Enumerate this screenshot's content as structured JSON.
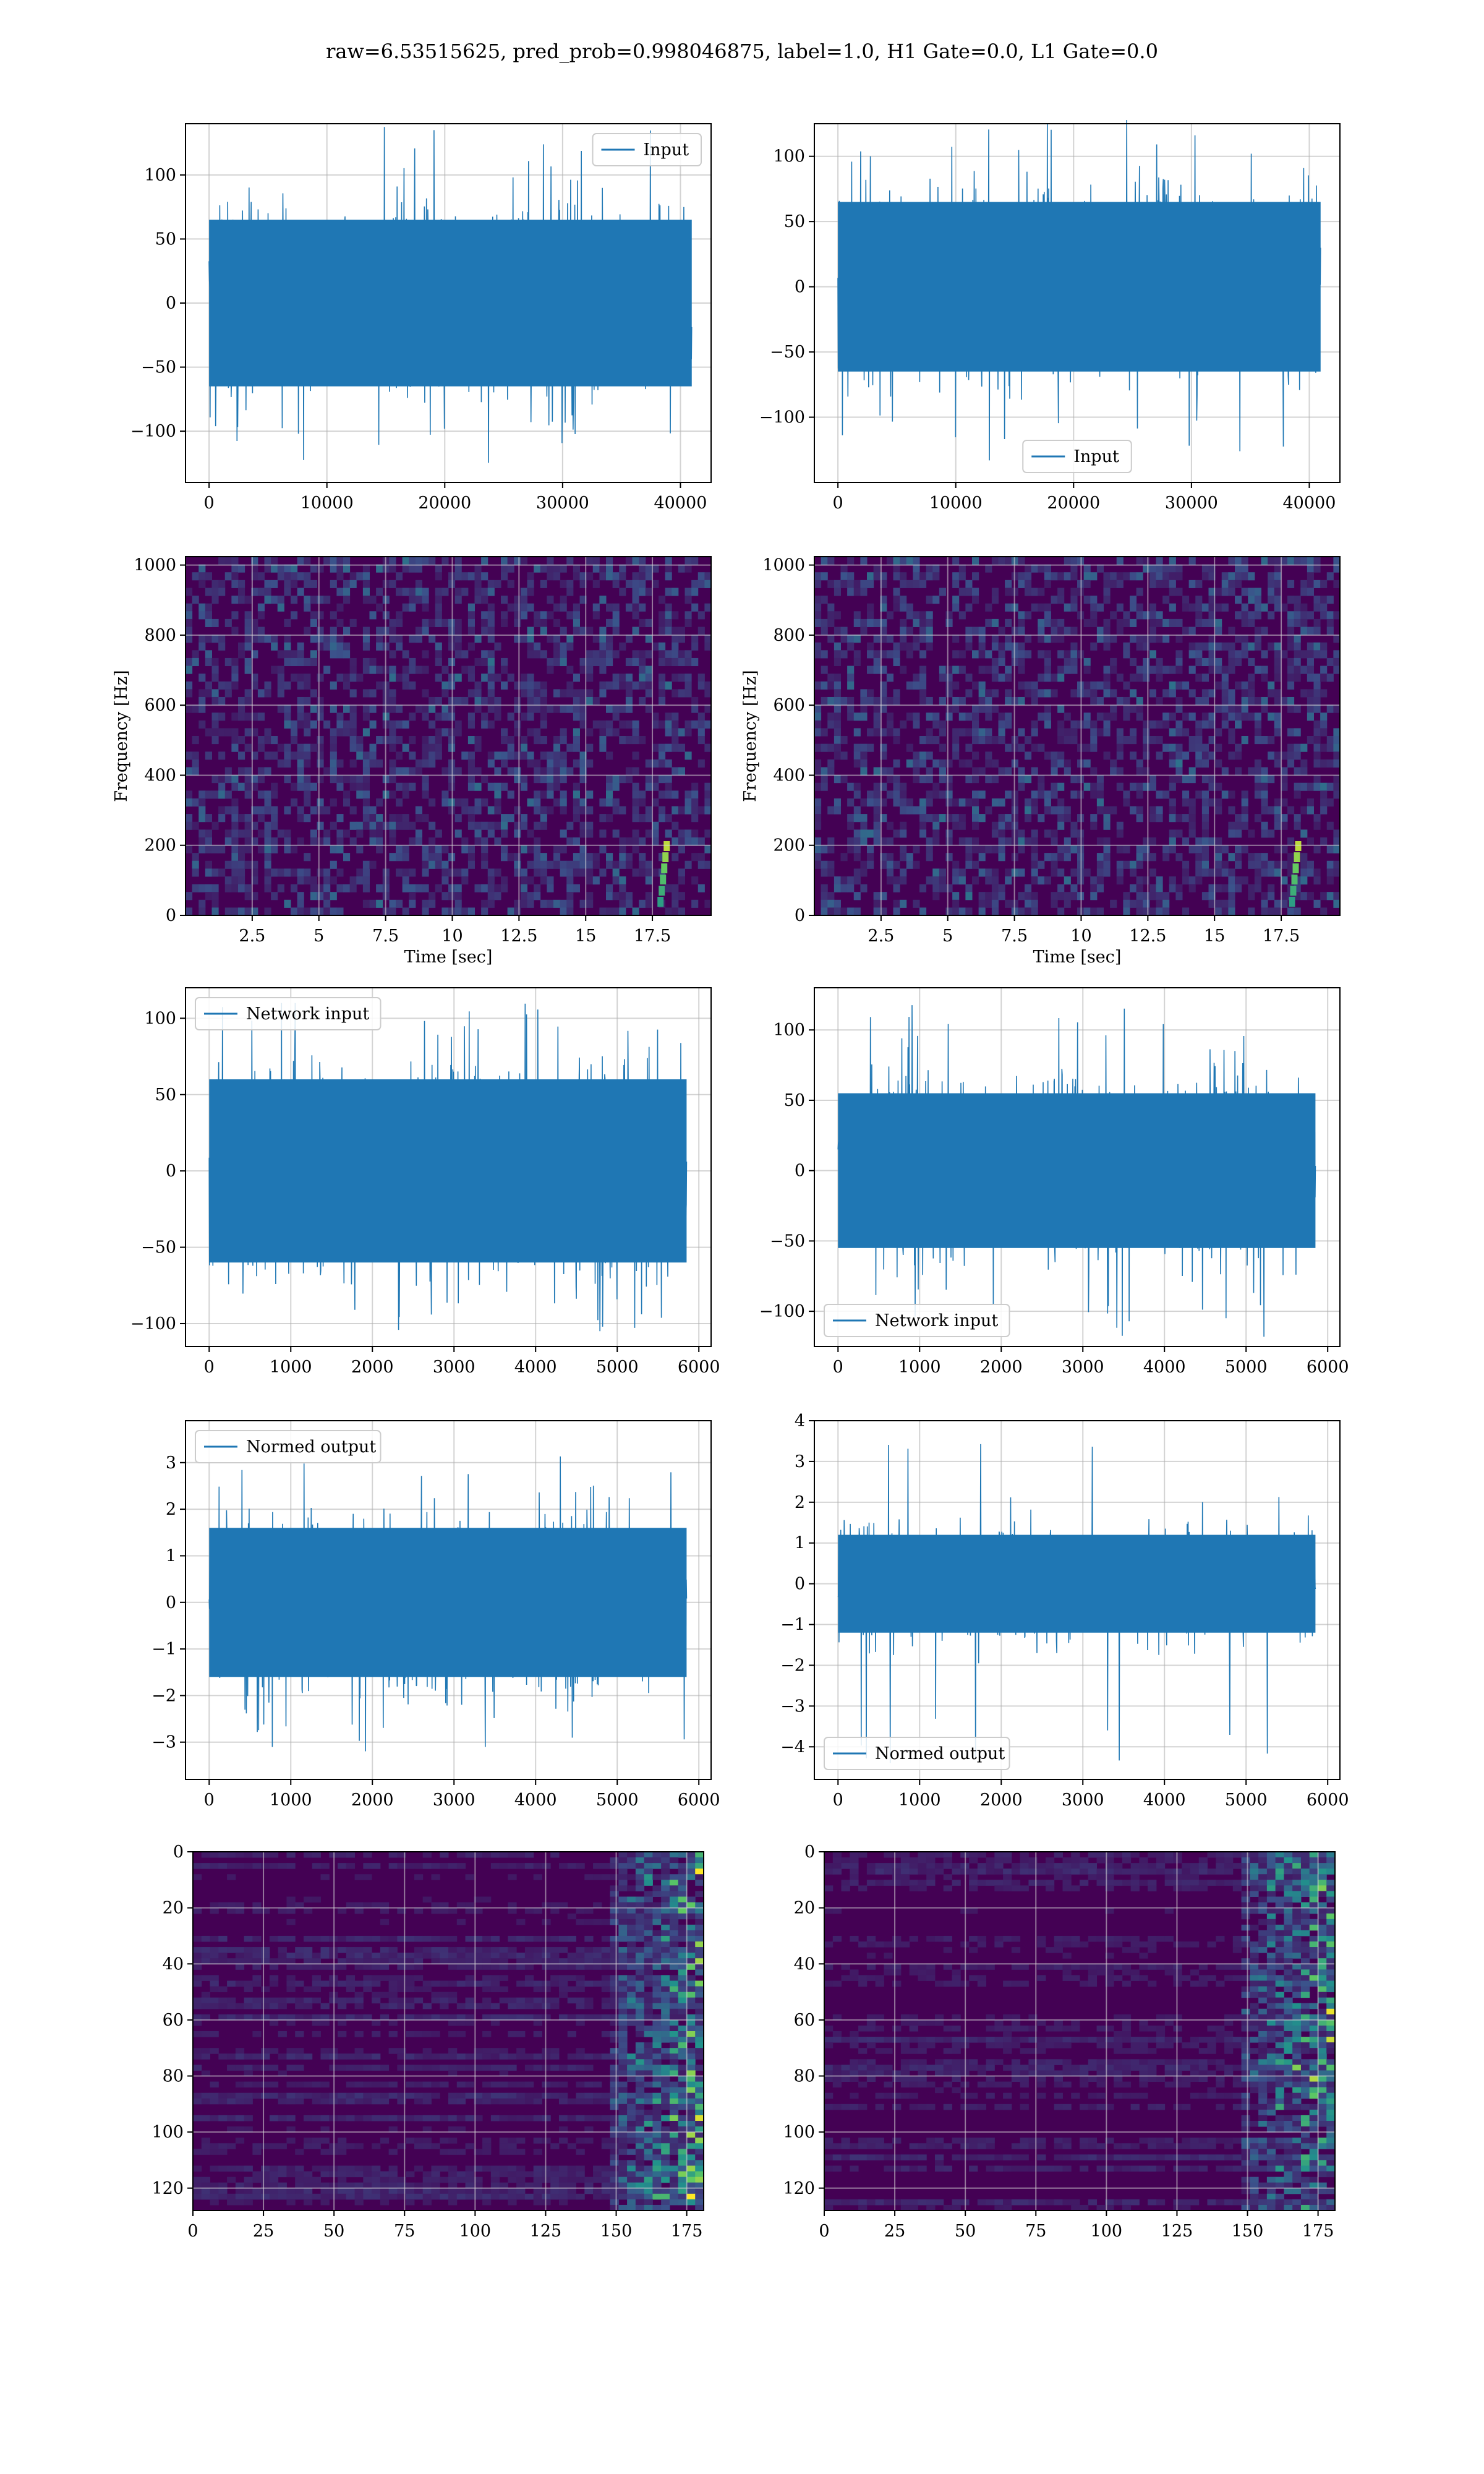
{
  "figure": {
    "title": "raw=6.53515625, pred_prob=0.998046875, label=1.0, H1 Gate=0.0, L1 Gate=0.0"
  },
  "colors": {
    "series": "#1f77b4",
    "grid": "#b0b0b0",
    "viridis_low": "#440154",
    "viridis_mid": "#21918c",
    "viridis_high": "#fde725"
  },
  "chart_data": [
    {
      "id": "input-h1",
      "type": "line",
      "legend": [
        "Input"
      ],
      "legend_loc": "upper right",
      "xlim": [
        -2000,
        42600
      ],
      "ylim": [
        -140,
        140
      ],
      "xticks": [
        0,
        10000,
        20000,
        30000,
        40000
      ],
      "yticks": [
        -100,
        -50,
        0,
        50,
        100
      ],
      "xlabel": "",
      "ylabel": "",
      "series": [
        {
          "name": "Input",
          "x_range": [
            0,
            40960
          ],
          "envelope_min": -125,
          "envelope_max": 138,
          "typical_amplitude": 65
        }
      ]
    },
    {
      "id": "input-l1",
      "type": "line",
      "legend": [
        "Input"
      ],
      "legend_loc": "lower center",
      "xlim": [
        -2000,
        42600
      ],
      "ylim": [
        -150,
        125
      ],
      "xticks": [
        0,
        10000,
        20000,
        30000,
        40000
      ],
      "yticks": [
        -100,
        -50,
        0,
        50,
        100
      ],
      "xlabel": "",
      "ylabel": "",
      "series": [
        {
          "name": "Input",
          "x_range": [
            0,
            40960
          ],
          "envelope_min": -135,
          "envelope_max": 130,
          "typical_amplitude": 65
        }
      ]
    },
    {
      "id": "spectrogram-h1",
      "type": "heatmap",
      "xlim": [
        0,
        19.7
      ],
      "ylim": [
        0,
        1024
      ],
      "xticks": [
        2.5,
        5.0,
        7.5,
        10.0,
        12.5,
        15.0,
        17.5
      ],
      "yticks": [
        0,
        200,
        400,
        600,
        800,
        1000
      ],
      "xlabel": "Time [sec]",
      "ylabel": "Frequency [Hz]",
      "colormap": "viridis"
    },
    {
      "id": "spectrogram-l1",
      "type": "heatmap",
      "xlim": [
        0,
        19.7
      ],
      "ylim": [
        0,
        1024
      ],
      "xticks": [
        2.5,
        5.0,
        7.5,
        10.0,
        12.5,
        15.0,
        17.5
      ],
      "yticks": [
        0,
        200,
        400,
        600,
        800,
        1000
      ],
      "xlabel": "Time [sec]",
      "ylabel": "Frequency [Hz]",
      "colormap": "viridis"
    },
    {
      "id": "network-input-h1",
      "type": "line",
      "legend": [
        "Network input"
      ],
      "legend_loc": "upper left",
      "xlim": [
        -290,
        6150
      ],
      "ylim": [
        -115,
        120
      ],
      "xticks": [
        0,
        1000,
        2000,
        3000,
        4000,
        5000,
        6000
      ],
      "yticks": [
        -100,
        -50,
        0,
        50,
        100
      ],
      "xlabel": "",
      "ylabel": "",
      "series": [
        {
          "name": "Network input",
          "x_range": [
            0,
            5850
          ],
          "envelope_min": -105,
          "envelope_max": 110,
          "typical_amplitude": 60
        }
      ]
    },
    {
      "id": "network-input-l1",
      "type": "line",
      "legend": [
        "Network input"
      ],
      "legend_loc": "lower left",
      "xlim": [
        -290,
        6150
      ],
      "ylim": [
        -125,
        130
      ],
      "xticks": [
        0,
        1000,
        2000,
        3000,
        4000,
        5000,
        6000
      ],
      "yticks": [
        -100,
        -50,
        0,
        50,
        100
      ],
      "xlabel": "",
      "ylabel": "",
      "series": [
        {
          "name": "Network input",
          "x_range": [
            0,
            5850
          ],
          "envelope_min": -122,
          "envelope_max": 118,
          "typical_amplitude": 55
        }
      ]
    },
    {
      "id": "normed-output-h1",
      "type": "line",
      "legend": [
        "Normed output"
      ],
      "legend_loc": "upper left",
      "xlim": [
        -290,
        6150
      ],
      "ylim": [
        -3.8,
        3.9
      ],
      "xticks": [
        0,
        1000,
        2000,
        3000,
        4000,
        5000,
        6000
      ],
      "yticks": [
        -3,
        -2,
        -1,
        0,
        1,
        2,
        3
      ],
      "xlabel": "",
      "ylabel": "",
      "series": [
        {
          "name": "Normed output",
          "x_range": [
            0,
            5850
          ],
          "envelope_min": -3.4,
          "envelope_max": 3.3,
          "typical_amplitude": 1.6
        }
      ]
    },
    {
      "id": "normed-output-l1",
      "type": "line",
      "legend": [
        "Normed output"
      ],
      "legend_loc": "lower left",
      "xlim": [
        -290,
        6150
      ],
      "ylim": [
        -4.8,
        4.0
      ],
      "xticks": [
        0,
        1000,
        2000,
        3000,
        4000,
        5000,
        6000
      ],
      "yticks": [
        -4,
        -3,
        -2,
        -1,
        0,
        1,
        2,
        3,
        4
      ],
      "xlabel": "",
      "ylabel": "",
      "series": [
        {
          "name": "Normed output",
          "x_range": [
            0,
            5850
          ],
          "envelope_min": -4.4,
          "envelope_max": 3.6,
          "typical_amplitude": 1.2
        }
      ]
    },
    {
      "id": "feature-map-h1",
      "type": "heatmap",
      "xlim": [
        0,
        181
      ],
      "ylim": [
        128,
        0
      ],
      "xticks": [
        0,
        25,
        50,
        75,
        100,
        125,
        150,
        175
      ],
      "yticks": [
        0,
        20,
        40,
        60,
        80,
        100,
        120
      ],
      "xlabel": "",
      "ylabel": "",
      "colormap": "viridis"
    },
    {
      "id": "feature-map-l1",
      "type": "heatmap",
      "xlim": [
        0,
        181
      ],
      "ylim": [
        128,
        0
      ],
      "xticks": [
        0,
        25,
        50,
        75,
        100,
        125,
        150,
        175
      ],
      "yticks": [
        0,
        20,
        40,
        60,
        80,
        100,
        120
      ],
      "xlabel": "",
      "ylabel": "",
      "colormap": "viridis"
    }
  ]
}
